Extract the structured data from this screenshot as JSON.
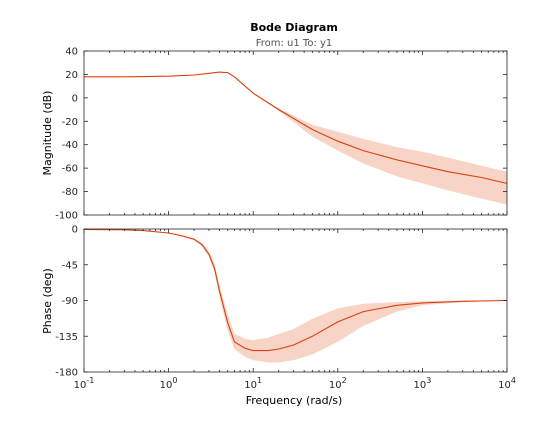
{
  "chart_data": {
    "type": "line",
    "title": "Bode Diagram",
    "subtitle": "From: u1  To: y1",
    "xlabel": "Frequency  (rad/s)",
    "x_scale": "log",
    "xlim": [
      0.1,
      10000
    ],
    "x_ticks": [
      {
        "value": 0.1,
        "base": "10",
        "exp": "-1"
      },
      {
        "value": 1,
        "base": "10",
        "exp": "0"
      },
      {
        "value": 10,
        "base": "10",
        "exp": "1"
      },
      {
        "value": 100,
        "base": "10",
        "exp": "2"
      },
      {
        "value": 1000,
        "base": "10",
        "exp": "3"
      },
      {
        "value": 10000,
        "base": "10",
        "exp": "4"
      }
    ],
    "colors": {
      "line": "#d9400e",
      "band": "#f5c6b3"
    },
    "panels": [
      {
        "ylabel": "Magnitude (dB)",
        "ylim": [
          -100,
          40
        ],
        "yticks": [
          "40",
          "20",
          "0",
          "-20",
          "-40",
          "-60",
          "-80",
          "-100"
        ],
        "ytick_values": [
          40,
          20,
          0,
          -20,
          -40,
          -60,
          -80,
          -100
        ],
        "series": [
          {
            "x": [
              0.1,
              0.3,
              1,
              2,
              3,
              4,
              5,
              6,
              8,
              10,
              20,
              50,
              100,
              200,
              500,
              1000,
              2000,
              5000,
              10000
            ],
            "y": [
              18,
              18,
              18.5,
              19.5,
              21,
              22,
              21.5,
              18,
              10,
              4,
              -10,
              -27,
              -37,
              -45,
              -53,
              -58,
              -63,
              -68,
              -73
            ],
            "lower": [
              18,
              18,
              18.5,
              19.5,
              21,
              22,
              21.5,
              18,
              10,
              4,
              -11,
              -33,
              -45,
              -56,
              -67,
              -73,
              -79,
              -86,
              -91
            ],
            "upper": [
              18,
              18,
              18.5,
              19.5,
              21,
              22,
              21.5,
              18,
              10,
              4,
              -9,
              -23,
              -29,
              -35,
              -42,
              -46,
              -51,
              -58,
              -63
            ]
          }
        ]
      },
      {
        "ylabel": "Phase (deg)",
        "ylim": [
          -180,
          0
        ],
        "yticks": [
          "0",
          "-45",
          "-90",
          "-135",
          "-180"
        ],
        "ytick_values": [
          0,
          -45,
          -90,
          -135,
          -180
        ],
        "series": [
          {
            "x": [
              0.1,
              0.3,
              0.5,
              1,
              1.5,
              2,
              2.5,
              3,
              3.5,
              4,
              5,
              6,
              8,
              10,
              15,
              20,
              30,
              50,
              100,
              200,
              500,
              1000,
              3000,
              10000
            ],
            "y": [
              -0.5,
              -1,
              -2,
              -5,
              -9,
              -13,
              -20,
              -32,
              -50,
              -78,
              -118,
              -142,
              -150,
              -153,
              -153,
              -151,
              -146,
              -135,
              -117,
              -104,
              -96,
              -93,
              -91,
              -90
            ],
            "lower": [
              -0.5,
              -1,
              -2,
              -5,
              -9,
              -14,
              -22,
              -35,
              -55,
              -85,
              -128,
              -151,
              -161,
              -165,
              -168,
              -168,
              -165,
              -158,
              -142,
              -122,
              -104,
              -96,
              -92,
              -90
            ],
            "upper": [
              -0.5,
              -1,
              -2,
              -5,
              -9,
              -12,
              -18,
              -28,
              -44,
              -70,
              -108,
              -132,
              -138,
              -140,
              -137,
              -132,
              -126,
              -113,
              -100,
              -94,
              -92,
              -91,
              -90,
              -90
            ]
          }
        ]
      }
    ]
  }
}
